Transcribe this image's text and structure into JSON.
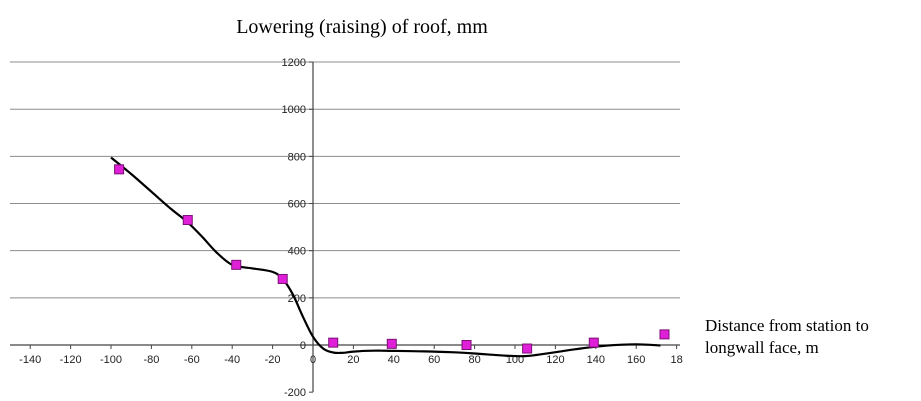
{
  "chart_data": {
    "type": "scatter",
    "title": "Lowering (raising) of roof, mm",
    "xlabel": "Distance from station to\nlongwall face, m",
    "ylabel": "",
    "xlim": [
      -140,
      180
    ],
    "ylim": [
      -200,
      1200
    ],
    "x_ticks": [
      "-140",
      "-120",
      "-100",
      "-80",
      "-60",
      "-40",
      "-20",
      "0",
      "20",
      "40",
      "60",
      "80",
      "100",
      "120",
      "140",
      "160",
      "18"
    ],
    "y_ticks": [
      "1200",
      "1000",
      "800",
      "600",
      "400",
      "200",
      "0",
      "-200"
    ],
    "grid": "horizontal",
    "series": [
      {
        "marker": "square",
        "color": "#e020d8",
        "points": [
          {
            "x": -96,
            "y": 745
          },
          {
            "x": -62,
            "y": 530
          },
          {
            "x": -38,
            "y": 340
          },
          {
            "x": -15,
            "y": 280
          },
          {
            "x": 10,
            "y": 10
          },
          {
            "x": 39,
            "y": 5
          },
          {
            "x": 76,
            "y": 0
          },
          {
            "x": 106,
            "y": -15
          },
          {
            "x": 139,
            "y": 10
          },
          {
            "x": 174,
            "y": 45
          }
        ]
      }
    ],
    "trend_line": {
      "color": "#000000",
      "points": [
        {
          "x": -100,
          "y": 795
        },
        {
          "x": -90,
          "y": 725
        },
        {
          "x": -80,
          "y": 650
        },
        {
          "x": -70,
          "y": 575
        },
        {
          "x": -62,
          "y": 520
        },
        {
          "x": -55,
          "y": 460
        },
        {
          "x": -48,
          "y": 395
        },
        {
          "x": -40,
          "y": 340
        },
        {
          "x": -30,
          "y": 325
        },
        {
          "x": -20,
          "y": 310
        },
        {
          "x": -15,
          "y": 280
        },
        {
          "x": -10,
          "y": 215
        },
        {
          "x": -5,
          "y": 120
        },
        {
          "x": 0,
          "y": 35
        },
        {
          "x": 5,
          "y": -15
        },
        {
          "x": 10,
          "y": -32
        },
        {
          "x": 15,
          "y": -33
        },
        {
          "x": 20,
          "y": -28
        },
        {
          "x": 30,
          "y": -24
        },
        {
          "x": 40,
          "y": -25
        },
        {
          "x": 55,
          "y": -27
        },
        {
          "x": 70,
          "y": -31
        },
        {
          "x": 80,
          "y": -36
        },
        {
          "x": 95,
          "y": -45
        },
        {
          "x": 105,
          "y": -47
        },
        {
          "x": 115,
          "y": -37
        },
        {
          "x": 130,
          "y": -18
        },
        {
          "x": 145,
          "y": -3
        },
        {
          "x": 160,
          "y": 3
        },
        {
          "x": 172,
          "y": -2
        }
      ]
    }
  }
}
